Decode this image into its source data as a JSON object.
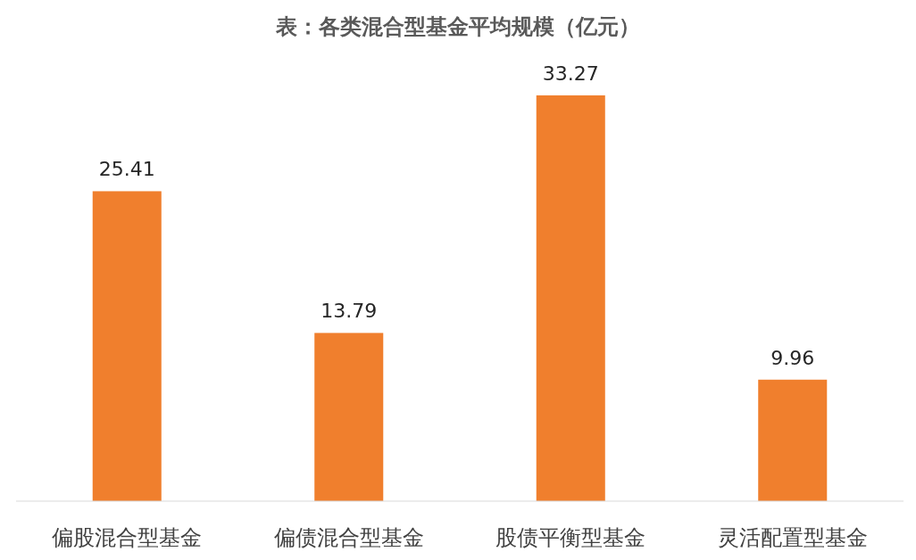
{
  "chart_data": {
    "type": "bar",
    "title": "表：各类混合型基金平均规模（亿元）",
    "categories": [
      "偏股混合型基金",
      "偏债混合型基金",
      "股债平衡型基金",
      "灵活配置型基金"
    ],
    "values": [
      25.41,
      13.79,
      33.27,
      9.96
    ],
    "color": "#f07f2d",
    "data_labels": true
  }
}
